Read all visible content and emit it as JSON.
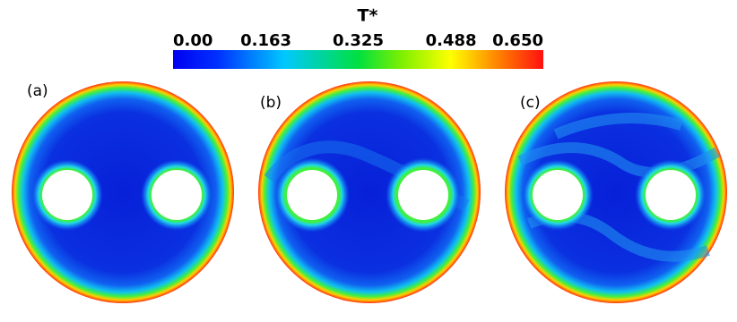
{
  "colorbar": {
    "title": "T*",
    "lim": [
      0,
      0.65
    ],
    "ticks": [
      {
        "value": 0,
        "label": "0.00"
      },
      0.163,
      0.325,
      0.488,
      {
        "value": 0.65,
        "label": "0.650"
      }
    ]
  },
  "panels": [
    {
      "label": "(a)"
    },
    {
      "label": "(b)"
    },
    {
      "label": "(c)"
    }
  ]
}
